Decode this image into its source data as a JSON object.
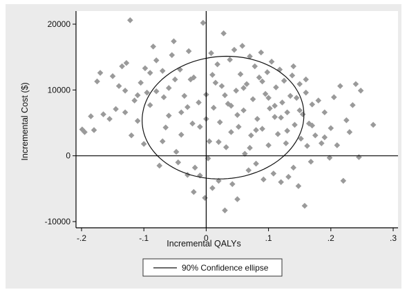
{
  "chart_data": {
    "type": "scatter",
    "xlabel": "Incremental QALYs",
    "ylabel": "Incremental Cost ($)",
    "xlim": [
      -0.2,
      0.3
    ],
    "ylim": [
      -10000,
      20000
    ],
    "x_ticks": [
      -0.2,
      -0.1,
      0,
      0.1,
      0.2,
      0.3
    ],
    "x_tick_labels": [
      "-.2",
      "-.1",
      "0",
      ".1",
      ".2",
      ".3"
    ],
    "y_ticks": [
      -10000,
      0,
      10000,
      20000
    ],
    "y_tick_labels": [
      "-10000",
      "0",
      "10000",
      "20000"
    ],
    "reference_lines": {
      "x": 0,
      "y": 0
    },
    "grid": false,
    "legend": {
      "position": "bottom",
      "entries": [
        "90% Confidence ellipse"
      ]
    },
    "ellipse": {
      "label": "90% Confidence ellipse",
      "center": [
        0.027,
        5800
      ],
      "semi_axis_x": 0.13,
      "semi_axis_y": 9300,
      "tilt": -0.08
    },
    "marker": {
      "shape": "diamond",
      "color": "#9a9a9a"
    },
    "points": [
      [
        -0.199,
        4000
      ],
      [
        -0.195,
        3600
      ],
      [
        -0.185,
        6000
      ],
      [
        -0.18,
        3900
      ],
      [
        -0.175,
        11300
      ],
      [
        -0.17,
        12600
      ],
      [
        -0.165,
        6300
      ],
      [
        -0.155,
        5600
      ],
      [
        -0.15,
        12100
      ],
      [
        -0.145,
        7100
      ],
      [
        -0.14,
        10600
      ],
      [
        -0.135,
        13600
      ],
      [
        -0.13,
        9900
      ],
      [
        -0.128,
        14100
      ],
      [
        -0.122,
        20600
      ],
      [
        -0.12,
        3100
      ],
      [
        -0.115,
        8400
      ],
      [
        -0.11,
        5300
      ],
      [
        -0.105,
        11100
      ],
      [
        -0.1,
        1800
      ],
      [
        -0.098,
        13300
      ],
      [
        -0.095,
        9600
      ],
      [
        -0.09,
        7700
      ],
      [
        -0.085,
        16600
      ],
      [
        -0.08,
        14500
      ],
      [
        -0.075,
        -1500
      ],
      [
        -0.07,
        12900
      ],
      [
        -0.068,
        8900
      ],
      [
        -0.065,
        4300
      ],
      [
        -0.06,
        10300
      ],
      [
        -0.055,
        15300
      ],
      [
        -0.052,
        17400
      ],
      [
        -0.048,
        600
      ],
      [
        -0.045,
        -1000
      ],
      [
        -0.042,
        13100
      ],
      [
        -0.04,
        6600
      ],
      [
        -0.035,
        9100
      ],
      [
        -0.03,
        -2900
      ],
      [
        -0.028,
        15900
      ],
      [
        -0.025,
        11600
      ],
      [
        -0.022,
        4900
      ],
      [
        -0.02,
        -5500
      ],
      [
        -0.018,
        -1800
      ],
      [
        -0.012,
        8100
      ],
      [
        -0.01,
        -3000
      ],
      [
        -0.005,
        20200
      ],
      [
        -0.002,
        -6400
      ],
      [
        0,
        9300
      ],
      [
        0.003,
        -400
      ],
      [
        0.005,
        2200
      ],
      [
        0.008,
        15600
      ],
      [
        0.01,
        -4900
      ],
      [
        0.012,
        7300
      ],
      [
        0.015,
        11100
      ],
      [
        0.018,
        13900
      ],
      [
        0.02,
        -3800
      ],
      [
        0.022,
        5100
      ],
      [
        0.025,
        10600
      ],
      [
        0.028,
        18600
      ],
      [
        0.03,
        -8300
      ],
      [
        0.032,
        1300
      ],
      [
        0.035,
        7900
      ],
      [
        0.038,
        14600
      ],
      [
        0.04,
        3600
      ],
      [
        0.042,
        -4300
      ],
      [
        0.045,
        16100
      ],
      [
        0.048,
        9900
      ],
      [
        0.05,
        -6600
      ],
      [
        0.052,
        4400
      ],
      [
        0.055,
        12400
      ],
      [
        0.058,
        16700
      ],
      [
        0.06,
        6900
      ],
      [
        0.062,
        300
      ],
      [
        0.065,
        10900
      ],
      [
        0.068,
        -2200
      ],
      [
        0.07,
        15100
      ],
      [
        0.072,
        3100
      ],
      [
        0.075,
        8600
      ],
      [
        0.078,
        13600
      ],
      [
        0.08,
        -1200
      ],
      [
        0.082,
        5600
      ],
      [
        0.085,
        11900
      ],
      [
        0.088,
        15700
      ],
      [
        0.09,
        4100
      ],
      [
        0.092,
        -3600
      ],
      [
        0.095,
        9400
      ],
      [
        0.098,
        12700
      ],
      [
        0.1,
        1600
      ],
      [
        0.102,
        7200
      ],
      [
        0.105,
        14300
      ],
      [
        0.108,
        -2700
      ],
      [
        0.11,
        5900
      ],
      [
        0.112,
        10400
      ],
      [
        0.115,
        3300
      ],
      [
        0.118,
        13100
      ],
      [
        0.12,
        -4000
      ],
      [
        0.122,
        8100
      ],
      [
        0.125,
        11400
      ],
      [
        0.128,
        1900
      ],
      [
        0.13,
        6600
      ],
      [
        0.132,
        -3200
      ],
      [
        0.135,
        9100
      ],
      [
        0.138,
        12200
      ],
      [
        0.14,
        -1800
      ],
      [
        0.142,
        4700
      ],
      [
        0.145,
        8800
      ],
      [
        0.148,
        -4600
      ],
      [
        0.15,
        10900
      ],
      [
        0.152,
        2600
      ],
      [
        0.155,
        6300
      ],
      [
        0.158,
        -7600
      ],
      [
        0.16,
        9600
      ],
      [
        0.162,
        1500
      ],
      [
        0.165,
        4900
      ],
      [
        0.168,
        -900
      ],
      [
        0.17,
        7800
      ],
      [
        0.175,
        3100
      ],
      [
        0.18,
        8400
      ],
      [
        0.185,
        1900
      ],
      [
        0.19,
        6600
      ],
      [
        0.198,
        -300
      ],
      [
        0.2,
        4200
      ],
      [
        0.205,
        8900
      ],
      [
        0.21,
        1600
      ],
      [
        0.215,
        10600
      ],
      [
        0.22,
        -3800
      ],
      [
        0.225,
        5400
      ],
      [
        0.23,
        3600
      ],
      [
        0.235,
        7700
      ],
      [
        0.24,
        10900
      ],
      [
        0.245,
        -200
      ],
      [
        0.248,
        9900
      ],
      [
        0.268,
        4700
      ],
      [
        -0.08,
        9800
      ],
      [
        -0.06,
        6100
      ],
      [
        -0.04,
        3200
      ],
      [
        -0.02,
        11900
      ],
      [
        0,
        5600
      ],
      [
        0.02,
        2100
      ],
      [
        0.04,
        7600
      ],
      [
        0.06,
        10300
      ],
      [
        0.08,
        3900
      ],
      [
        0.1,
        8800
      ],
      [
        0.12,
        5800
      ],
      [
        -0.07,
        2200
      ],
      [
        -0.05,
        11600
      ],
      [
        -0.03,
        7400
      ],
      [
        -0.01,
        4400
      ],
      [
        0.01,
        12300
      ],
      [
        0.03,
        9200
      ],
      [
        0.05,
        6200
      ],
      [
        0.07,
        1200
      ],
      [
        0.09,
        11300
      ],
      [
        0.11,
        7600
      ],
      [
        0.13,
        3800
      ],
      [
        0.15,
        6900
      ],
      [
        -0.09,
        12600
      ],
      [
        -0.11,
        9200
      ],
      [
        -0.13,
        6600
      ],
      [
        0.17,
        4600
      ],
      [
        0.19,
        2800
      ],
      [
        0.16,
        11600
      ],
      [
        0.14,
        13600
      ]
    ]
  }
}
